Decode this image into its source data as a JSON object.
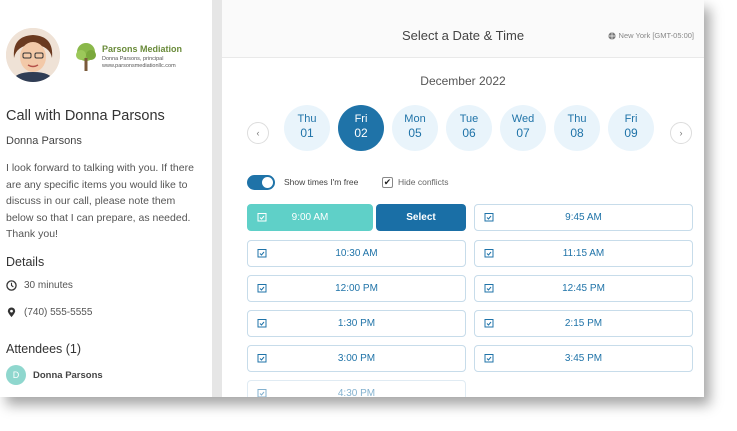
{
  "sidebar": {
    "logo_title": "Parsons Mediation",
    "logo_sub1": "Donna Parsons, principal",
    "logo_sub2": "www.parsonsmediationllc.com",
    "event_title": "Call with Donna Parsons",
    "host": "Donna Parsons",
    "description": "I look forward to talking with you.  If there are any specific items you would like to discuss in our call, please note them below so that I can prepare, as needed.  Thank you!",
    "details_heading": "Details",
    "duration": "30 minutes",
    "phone": "(740) 555-5555",
    "attendees_heading": "Attendees (1)",
    "attendee_initial": "D",
    "attendee_name": "Donna Parsons"
  },
  "header": {
    "title": "Select a Date & Time",
    "timezone": "New York [GMT-05:00]"
  },
  "calendar": {
    "month": "December 2022",
    "prev": "‹",
    "next": "›",
    "days": [
      {
        "name": "Thu",
        "date": "01"
      },
      {
        "name": "Fri",
        "date": "02"
      },
      {
        "name": "Mon",
        "date": "05"
      },
      {
        "name": "Tue",
        "date": "06"
      },
      {
        "name": "Wed",
        "date": "07"
      },
      {
        "name": "Thu",
        "date": "08"
      },
      {
        "name": "Fri",
        "date": "09"
      }
    ]
  },
  "options": {
    "show_free": "Show times I'm free",
    "hide_conflicts": "Hide conflicts",
    "checkmark": "✔"
  },
  "slots": {
    "select_label": "Select",
    "times": [
      "9:00 AM",
      "9:45 AM",
      "10:30 AM",
      "11:15 AM",
      "12:00 PM",
      "12:45 PM",
      "1:30 PM",
      "2:15 PM",
      "3:00 PM",
      "3:45 PM",
      "4:30 PM"
    ]
  },
  "colors": {
    "accent": "#1f73a8",
    "selected_slot": "#5fd0c8"
  }
}
